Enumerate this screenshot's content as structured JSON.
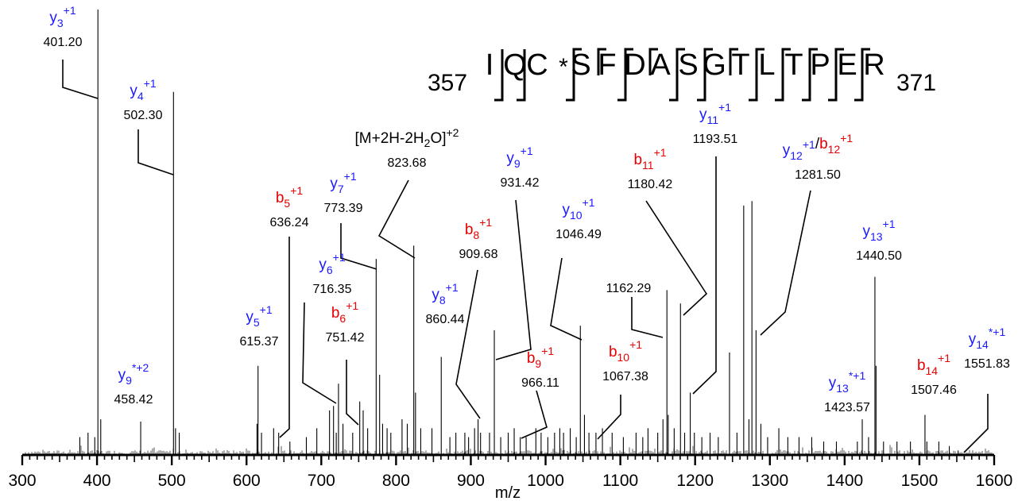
{
  "chart_data": {
    "type": "bar",
    "subtype": "mass-spectrum",
    "xlabel": "m/z",
    "ylabel": "",
    "xlim": [
      300,
      1600
    ],
    "ylim": [
      0,
      100
    ],
    "x_ticks": [
      300,
      400,
      500,
      600,
      700,
      800,
      900,
      1000,
      1100,
      1200,
      1300,
      1400,
      1500,
      1600
    ],
    "x_ticks_labels": [
      "300",
      "400",
      "500",
      "600",
      "700",
      "800",
      "900",
      "1000",
      "1100",
      "1200",
      "1300",
      "1400",
      "1500",
      "1600"
    ],
    "colors": {
      "y_ion": "#1a1aff",
      "b_ion": "#e60000",
      "neutral": "#000000"
    },
    "sequence": {
      "start": "357",
      "end": "371",
      "residues": [
        "I",
        "Q",
        "C",
        "*",
        "S",
        "F",
        "D",
        "A",
        "S",
        "G",
        "T",
        "L",
        "T",
        "P",
        "E",
        "R"
      ]
    },
    "peaks": [
      [
        401.2,
        100
      ],
      [
        502.3,
        81.5
      ],
      [
        458.42,
        7.5
      ],
      [
        615.37,
        20
      ],
      [
        636.24,
        6
      ],
      [
        716.35,
        11
      ],
      [
        711,
        10
      ],
      [
        723,
        16
      ],
      [
        751.42,
        12
      ],
      [
        756,
        10
      ],
      [
        773.39,
        44
      ],
      [
        778,
        18
      ],
      [
        823.68,
        47
      ],
      [
        826,
        14
      ],
      [
        860.44,
        22
      ],
      [
        909.68,
        8
      ],
      [
        931.42,
        28
      ],
      [
        966.11,
        4
      ],
      [
        1046.49,
        29
      ],
      [
        1067.38,
        5
      ],
      [
        1162.29,
        37
      ],
      [
        1164,
        9
      ],
      [
        1180.42,
        34
      ],
      [
        1193.51,
        14
      ],
      [
        1246,
        23
      ],
      [
        1265,
        56
      ],
      [
        1276,
        57
      ],
      [
        1281.5,
        28
      ],
      [
        1423.57,
        8
      ],
      [
        1440.5,
        40
      ],
      [
        1442,
        20
      ],
      [
        1507.46,
        9
      ],
      [
        1551.83,
        1
      ],
      [
        405,
        8
      ],
      [
        397,
        4
      ],
      [
        505,
        6
      ],
      [
        510,
        5
      ],
      [
        388,
        5
      ],
      [
        377,
        4
      ],
      [
        614,
        7
      ],
      [
        620,
        5
      ],
      [
        643,
        5
      ],
      [
        658,
        3
      ],
      [
        680,
        4
      ],
      [
        694,
        6
      ],
      [
        720,
        5
      ],
      [
        729,
        7
      ],
      [
        742,
        5
      ],
      [
        762,
        6
      ],
      [
        782,
        7
      ],
      [
        788,
        6
      ],
      [
        793,
        5
      ],
      [
        808,
        8
      ],
      [
        815,
        7
      ],
      [
        833,
        6
      ],
      [
        848,
        6
      ],
      [
        872,
        4
      ],
      [
        880,
        5
      ],
      [
        892,
        5
      ],
      [
        897,
        4
      ],
      [
        905,
        6
      ],
      [
        913,
        5
      ],
      [
        925,
        5
      ],
      [
        940,
        4
      ],
      [
        950,
        5
      ],
      [
        958,
        6
      ],
      [
        974,
        4
      ],
      [
        987,
        6
      ],
      [
        994,
        5
      ],
      [
        1003,
        4
      ],
      [
        1012,
        5
      ],
      [
        1019,
        6
      ],
      [
        1024,
        5
      ],
      [
        1033,
        6
      ],
      [
        1041,
        4
      ],
      [
        1052,
        9
      ],
      [
        1058,
        5
      ],
      [
        1076,
        6
      ],
      [
        1089,
        5
      ],
      [
        1104,
        4
      ],
      [
        1121,
        5
      ],
      [
        1130,
        4
      ],
      [
        1137,
        6
      ],
      [
        1150,
        5
      ],
      [
        1157,
        8
      ],
      [
        1172,
        6
      ],
      [
        1186,
        5
      ],
      [
        1199,
        5
      ],
      [
        1209,
        4
      ],
      [
        1220,
        5
      ],
      [
        1231,
        4
      ],
      [
        1256,
        5
      ],
      [
        1272,
        8
      ],
      [
        1288,
        7
      ],
      [
        1297,
        4
      ],
      [
        1312,
        6
      ],
      [
        1324,
        4
      ],
      [
        1339,
        4
      ],
      [
        1356,
        4
      ],
      [
        1372,
        3
      ],
      [
        1389,
        3
      ],
      [
        1417,
        3
      ],
      [
        1432,
        4
      ],
      [
        1452,
        3
      ],
      [
        1470,
        3
      ],
      [
        1488,
        3
      ],
      [
        1510,
        3
      ],
      [
        1526,
        3
      ],
      [
        1540,
        2
      ]
    ],
    "annotations": [
      {
        "ion": "y",
        "sub": "3",
        "sup": "+1",
        "star": false,
        "color": "blue",
        "value": "401.20"
      },
      {
        "ion": "y",
        "sub": "4",
        "sup": "+1",
        "star": false,
        "color": "blue",
        "value": "502.30"
      },
      {
        "ion": "y",
        "sub": "9",
        "sup": "+2",
        "star": true,
        "color": "blue",
        "value": "458.42"
      },
      {
        "ion": "y",
        "sub": "5",
        "sup": "+1",
        "star": false,
        "color": "blue",
        "value": "615.37"
      },
      {
        "ion": "b",
        "sub": "5",
        "sup": "+1",
        "star": false,
        "color": "red",
        "value": "636.24"
      },
      {
        "ion": "y",
        "sub": "6",
        "sup": "+1",
        "star": false,
        "color": "blue",
        "value": "716.35"
      },
      {
        "ion": "b",
        "sub": "6",
        "sup": "+1",
        "star": false,
        "color": "red",
        "value": "751.42"
      },
      {
        "ion": "y",
        "sub": "7",
        "sup": "+1",
        "star": false,
        "color": "blue",
        "value": "773.39"
      },
      {
        "ion": "[M+2H-2H2O]",
        "sub": "",
        "sup": "+2",
        "star": false,
        "color": "black",
        "value": "823.68"
      },
      {
        "ion": "y",
        "sub": "8",
        "sup": "+1",
        "star": false,
        "color": "blue",
        "value": "860.44"
      },
      {
        "ion": "b",
        "sub": "8",
        "sup": "+1",
        "star": false,
        "color": "red",
        "value": "909.68"
      },
      {
        "ion": "y",
        "sub": "9",
        "sup": "+1",
        "star": false,
        "color": "blue",
        "value": "931.42"
      },
      {
        "ion": "b",
        "sub": "9",
        "sup": "+1",
        "star": false,
        "color": "red",
        "value": "966.11"
      },
      {
        "ion": "y",
        "sub": "10",
        "sup": "+1",
        "star": false,
        "color": "blue",
        "value": "1046.49"
      },
      {
        "ion": "b",
        "sub": "10",
        "sup": "+1",
        "star": false,
        "color": "red",
        "value": "1067.38"
      },
      {
        "ion": "",
        "sub": "",
        "sup": "",
        "star": false,
        "color": "black",
        "value": "1162.29"
      },
      {
        "ion": "b",
        "sub": "11",
        "sup": "+1",
        "star": false,
        "color": "red",
        "value": "1180.42"
      },
      {
        "ion": "y",
        "sub": "11",
        "sup": "+1",
        "star": false,
        "color": "blue",
        "value": "1193.51"
      },
      {
        "ion": "y/b",
        "sub": "12",
        "sup": "+1",
        "star": false,
        "color": "mixed",
        "value": "1281.50"
      },
      {
        "ion": "y",
        "sub": "13",
        "sup": "+1",
        "star": true,
        "color": "blue",
        "value": "1423.57"
      },
      {
        "ion": "y",
        "sub": "13",
        "sup": "+1",
        "star": false,
        "color": "blue",
        "value": "1440.50"
      },
      {
        "ion": "b",
        "sub": "14",
        "sup": "+1",
        "star": false,
        "color": "red",
        "value": "1507.46"
      },
      {
        "ion": "y",
        "sub": "14",
        "sup": "+1",
        "star": true,
        "color": "blue",
        "value": "1551.83"
      }
    ]
  }
}
